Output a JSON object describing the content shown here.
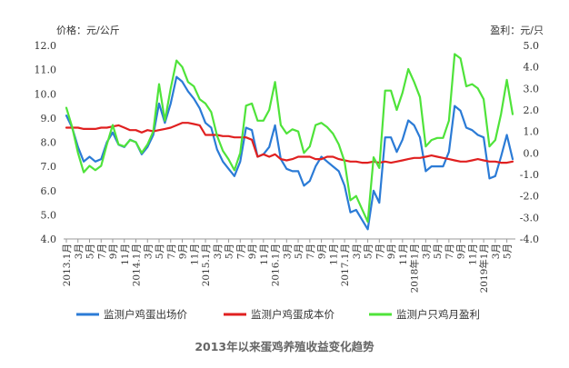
{
  "chart_data": {
    "type": "line",
    "caption": "2013年以来蛋鸡养殖收益变化趋势",
    "left_axis_label": "价格：元/公斤",
    "right_axis_label": "盈利：元/只",
    "left_ylim": [
      4.0,
      12.0
    ],
    "right_ylim": [
      -4.0,
      5.0
    ],
    "left_ticks": [
      "4.0",
      "5.0",
      "6.0",
      "7.0",
      "8.0",
      "9.0",
      "10.0",
      "11.0",
      "12.0"
    ],
    "right_ticks": [
      "-4.0",
      "-3.0",
      "-2.0",
      "-1.0",
      "0.0",
      "1.0",
      "2.0",
      "3.0",
      "4.0",
      "5.0"
    ],
    "x_labels": [
      "2013.1月",
      "3月",
      "5月",
      "7月",
      "9月",
      "11月",
      "2014.1月",
      "3月",
      "5月",
      "7月",
      "9月",
      "11月",
      "2015.1月",
      "3月",
      "5月",
      "7月",
      "9月",
      "11月",
      "2016.1月",
      "3月",
      "5月",
      "7月",
      "9月",
      "11月",
      "2017.1月",
      "3月",
      "5月",
      "7月",
      "9月",
      "11月",
      "2018年1月",
      "3月",
      "5月",
      "7月",
      "9月",
      "11月",
      "2019年1月",
      "3月",
      "5月"
    ],
    "x_count": 78,
    "grid": false,
    "legend_position": "bottom",
    "series": [
      {
        "name": "监测户鸡蛋出场价",
        "axis": "left",
        "color": "#2b7bd6",
        "values": [
          9.1,
          8.6,
          7.8,
          7.2,
          7.4,
          7.2,
          7.3,
          8.0,
          8.4,
          7.9,
          7.8,
          8.1,
          8.0,
          7.5,
          7.8,
          8.3,
          9.6,
          8.8,
          9.6,
          10.7,
          10.5,
          10.1,
          9.8,
          9.4,
          8.8,
          8.6,
          7.7,
          7.2,
          6.9,
          6.6,
          7.2,
          8.6,
          8.5,
          7.4,
          7.5,
          7.8,
          8.7,
          7.3,
          6.9,
          6.8,
          6.8,
          6.2,
          6.4,
          7.0,
          7.4,
          7.2,
          7.0,
          6.8,
          6.2,
          5.1,
          5.2,
          4.8,
          4.4,
          6.0,
          5.5,
          8.2,
          8.2,
          7.6,
          8.1,
          8.9,
          8.7,
          8.2,
          6.8,
          7.0,
          7.0,
          7.0,
          7.6,
          9.5,
          9.3,
          8.6,
          8.5,
          8.3,
          8.2,
          6.5,
          6.6,
          7.4,
          8.3,
          7.3
        ]
      },
      {
        "name": "监测户鸡蛋成本价",
        "axis": "left",
        "color": "#e02020",
        "values": [
          8.6,
          8.6,
          8.6,
          8.55,
          8.55,
          8.55,
          8.6,
          8.6,
          8.65,
          8.7,
          8.6,
          8.5,
          8.5,
          8.4,
          8.5,
          8.45,
          8.5,
          8.55,
          8.6,
          8.7,
          8.8,
          8.8,
          8.75,
          8.7,
          8.3,
          8.3,
          8.3,
          8.25,
          8.25,
          8.2,
          8.2,
          8.2,
          8.1,
          7.4,
          7.5,
          7.4,
          7.5,
          7.3,
          7.25,
          7.3,
          7.4,
          7.4,
          7.4,
          7.3,
          7.3,
          7.4,
          7.4,
          7.3,
          7.25,
          7.2,
          7.2,
          7.15,
          7.15,
          7.2,
          7.15,
          7.2,
          7.15,
          7.2,
          7.25,
          7.3,
          7.35,
          7.35,
          7.4,
          7.45,
          7.4,
          7.35,
          7.3,
          7.25,
          7.2,
          7.2,
          7.25,
          7.3,
          7.25,
          7.2,
          7.2,
          7.15,
          7.15,
          7.2
        ]
      },
      {
        "name": "监测户只鸡月盈利",
        "axis": "right",
        "color": "#4fe33a",
        "values": [
          2.1,
          1.2,
          0.0,
          -0.9,
          -0.6,
          -0.8,
          -0.6,
          0.4,
          1.3,
          0.4,
          0.3,
          0.6,
          0.5,
          0.0,
          0.4,
          1.0,
          3.2,
          1.5,
          3.0,
          4.3,
          4.0,
          3.3,
          3.1,
          2.5,
          2.3,
          1.9,
          0.8,
          0.1,
          -0.3,
          -0.8,
          0.0,
          2.2,
          2.3,
          1.5,
          1.5,
          2.0,
          3.3,
          1.3,
          0.9,
          1.1,
          1.0,
          0.0,
          0.3,
          1.3,
          1.4,
          1.2,
          0.9,
          0.4,
          -0.4,
          -2.2,
          -2.0,
          -2.6,
          -3.2,
          -0.2,
          -0.7,
          2.9,
          2.9,
          2.0,
          2.8,
          3.9,
          3.3,
          2.6,
          0.3,
          0.6,
          0.7,
          0.7,
          1.5,
          4.6,
          4.4,
          3.1,
          3.2,
          3.0,
          2.5,
          0.3,
          0.6,
          1.8,
          3.4,
          1.8
        ]
      }
    ]
  }
}
